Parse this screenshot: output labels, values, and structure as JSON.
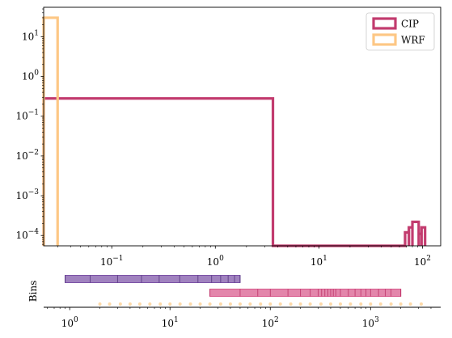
{
  "chart_data": [
    {
      "type": "histogram-step",
      "xscale": "log",
      "yscale": "log",
      "xlim": [
        0.022,
        150
      ],
      "ylim": [
        5.5e-05,
        55
      ],
      "x_ticks": [
        {
          "value": 0.1,
          "base": "10",
          "exp": "−1"
        },
        {
          "value": 1,
          "base": "10",
          "exp": "0"
        },
        {
          "value": 10,
          "base": "10",
          "exp": "1"
        },
        {
          "value": 100,
          "base": "10",
          "exp": "2"
        }
      ],
      "y_ticks": [
        {
          "value": 0.0001,
          "base": "10",
          "exp": "−4"
        },
        {
          "value": 0.001,
          "base": "10",
          "exp": "−3"
        },
        {
          "value": 0.01,
          "base": "10",
          "exp": "−2"
        },
        {
          "value": 0.1,
          "base": "10",
          "exp": "−1"
        },
        {
          "value": 1,
          "base": "10",
          "exp": "0"
        },
        {
          "value": 10,
          "base": "10",
          "exp": "1"
        }
      ],
      "legend": {
        "placement": "top-right"
      },
      "series": [
        {
          "name": "CIP",
          "color": "#c23b6e",
          "steps": [
            {
              "x0": 0.022,
              "x1": 3.6,
              "y": 0.28
            },
            {
              "x0": 68,
              "x1": 74,
              "y": 0.00012
            },
            {
              "x0": 74,
              "x1": 80,
              "y": 0.00016
            },
            {
              "x0": 80,
              "x1": 92,
              "y": 0.00022
            },
            {
              "x0": 92,
              "x1": 98,
              "y": 0.00011
            },
            {
              "x0": 98,
              "x1": 106,
              "y": 0.00016
            }
          ]
        },
        {
          "name": "WRF",
          "color": "#fdc785",
          "steps": [
            {
              "x0": 0.022,
              "x1": 0.03,
              "y": 30
            }
          ]
        }
      ]
    },
    {
      "type": "bin-edges",
      "xscale": "log",
      "xlim": [
        0.55,
        5000
      ],
      "ylabel": "Bins",
      "x_ticks": [
        {
          "value": 1,
          "base": "10",
          "exp": "0"
        },
        {
          "value": 10,
          "base": "10",
          "exp": "1"
        },
        {
          "value": 100,
          "base": "10",
          "exp": "2"
        },
        {
          "value": 1000,
          "base": "10",
          "exp": "3"
        }
      ],
      "rows": [
        {
          "color": "#7b52a6",
          "range": [
            0.9,
            50
          ],
          "edges": [
            0.9,
            1.6,
            3.0,
            5.2,
            7.8,
            12.5,
            19,
            26,
            32,
            38,
            44,
            50
          ]
        },
        {
          "color": "#d8588b",
          "range": [
            25,
            2000
          ],
          "edges": [
            25,
            50,
            75,
            100,
            150,
            200,
            250,
            300,
            325,
            350,
            375,
            400,
            425,
            450,
            500,
            600,
            700,
            800,
            900,
            1000,
            1200,
            1400,
            1600,
            2000
          ]
        },
        {
          "color": "#fdd9a8",
          "dots": [
            2,
            2.5,
            3.2,
            4,
            5,
            6.3,
            8,
            10,
            12.6,
            16,
            20,
            25,
            32,
            40,
            50,
            63,
            80,
            100,
            126,
            160,
            200,
            250,
            320,
            400,
            500,
            630,
            800,
            1000,
            1260,
            1600,
            2000,
            2500,
            3200
          ]
        }
      ]
    }
  ]
}
